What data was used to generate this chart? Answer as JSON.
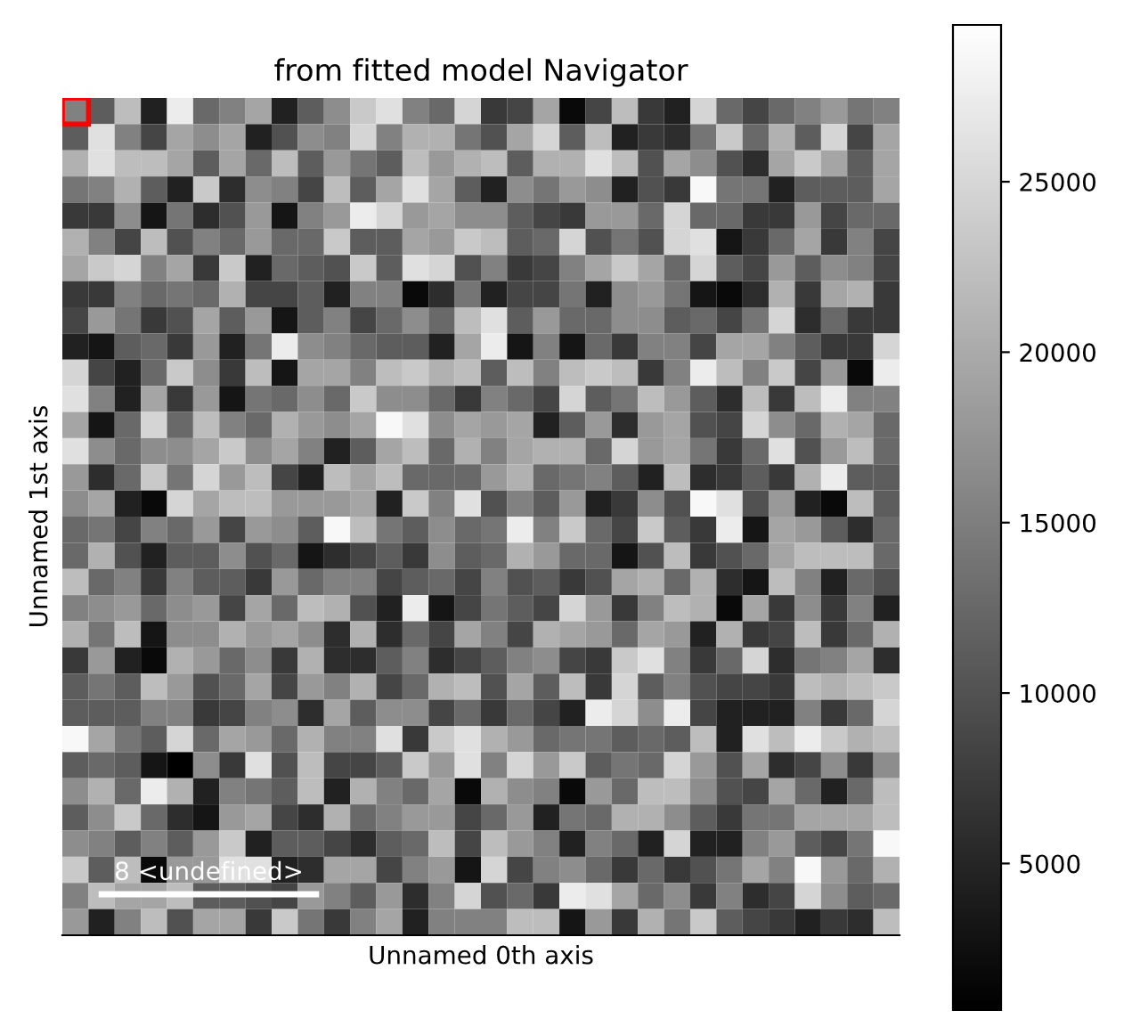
{
  "chart_data": {
    "type": "heatmap",
    "title": "from fitted model Navigator",
    "xlabel": "Unnamed 0th axis",
    "ylabel": "Unnamed 1st axis",
    "annotations": [
      "8 <undefined>"
    ],
    "tick_labels": false,
    "clim": [
      700,
      29600
    ],
    "cticks": [
      5000,
      10000,
      15000,
      20000,
      25000
    ],
    "categories": [
      null,
      null,
      null,
      null,
      null,
      null,
      null,
      null,
      null,
      null,
      null,
      null,
      null,
      null,
      null,
      null,
      null,
      null,
      null,
      null,
      null,
      null,
      null,
      null,
      null,
      null,
      null,
      null,
      null,
      null,
      null,
      null
    ],
    "y_categories": [
      null,
      null,
      null,
      null,
      null,
      null,
      null,
      null,
      null,
      null,
      null,
      null,
      null,
      null,
      null,
      null,
      null,
      null,
      null,
      null,
      null,
      null,
      null,
      null,
      null,
      null,
      null,
      null,
      null,
      null,
      null,
      null
    ],
    "cells": [
      [
        15300,
        11250,
        22050,
        4500,
        27450,
        12600,
        15300,
        19350,
        4500,
        11250,
        16650,
        23400,
        26100,
        15300,
        12600,
        24750,
        7200,
        8550,
        19350,
        1800,
        8550,
        22050,
        7200,
        4500,
        24750,
        12600,
        8550,
        12600,
        15300,
        18000,
        13950,
        15300
      ],
      [
        11250,
        26100,
        15300,
        8550,
        19350,
        16650,
        19350,
        4500,
        9900,
        16650,
        15300,
        24750,
        15300,
        20700,
        20700,
        13950,
        9900,
        19350,
        24750,
        11250,
        22050,
        4500,
        7200,
        5850,
        13950,
        23400,
        12600,
        20700,
        11250,
        24750,
        8550,
        19350
      ],
      [
        20700,
        26100,
        22050,
        22050,
        19350,
        11250,
        19350,
        12600,
        22050,
        11250,
        18000,
        13950,
        11250,
        22050,
        18000,
        20700,
        22050,
        11250,
        20700,
        20700,
        26100,
        22050,
        9900,
        19350,
        16650,
        9900,
        5850,
        19350,
        23400,
        19350,
        11250,
        19350
      ],
      [
        13950,
        15300,
        20700,
        11250,
        4500,
        23400,
        5850,
        16650,
        15300,
        8550,
        22050,
        11250,
        19350,
        26100,
        19350,
        11250,
        4500,
        16650,
        13950,
        18000,
        16650,
        4500,
        9900,
        7200,
        28800,
        13950,
        13950,
        4500,
        11250,
        11250,
        11250,
        19350
      ],
      [
        7200,
        7200,
        16650,
        3150,
        13950,
        5850,
        9900,
        18000,
        3150,
        15300,
        18000,
        27450,
        24750,
        18000,
        19350,
        16650,
        16650,
        11250,
        8550,
        7200,
        18000,
        18000,
        12600,
        24750,
        12600,
        12600,
        7200,
        7200,
        18000,
        8550,
        12600,
        12600
      ],
      [
        20700,
        15300,
        8550,
        22050,
        9900,
        15300,
        12600,
        18000,
        12600,
        12600,
        23400,
        11250,
        11250,
        19350,
        18000,
        23400,
        22050,
        11250,
        12600,
        24750,
        9900,
        13950,
        9900,
        24750,
        26100,
        3150,
        7200,
        12600,
        19350,
        7200,
        15300,
        8550
      ],
      [
        19350,
        23400,
        24750,
        15300,
        19350,
        7200,
        23400,
        4500,
        12600,
        11250,
        9900,
        23400,
        11250,
        26100,
        24750,
        9900,
        15300,
        7200,
        8550,
        15300,
        19350,
        23400,
        19350,
        12600,
        24750,
        11250,
        8550,
        18000,
        11250,
        16650,
        15300,
        8550
      ],
      [
        7200,
        7200,
        15300,
        12600,
        13950,
        12600,
        20700,
        8550,
        8550,
        11250,
        4500,
        15300,
        15300,
        1800,
        5850,
        13950,
        4500,
        8550,
        8550,
        13950,
        4500,
        16650,
        18000,
        13950,
        3150,
        1800,
        5850,
        20700,
        7200,
        19350,
        20700,
        7200
      ],
      [
        8550,
        18000,
        13950,
        7200,
        9900,
        19350,
        11250,
        18000,
        3150,
        11250,
        15300,
        8550,
        12600,
        16650,
        12600,
        22050,
        26100,
        11250,
        18000,
        12600,
        12600,
        16650,
        16650,
        11250,
        12600,
        8550,
        13950,
        24750,
        5850,
        12600,
        7200,
        7200
      ],
      [
        4500,
        3150,
        11250,
        12600,
        7200,
        18000,
        4500,
        13950,
        27450,
        16650,
        15300,
        12600,
        11250,
        11250,
        4500,
        19350,
        27450,
        3150,
        15300,
        3150,
        12600,
        7200,
        15300,
        15300,
        8550,
        19350,
        19350,
        15300,
        11250,
        7200,
        7200,
        24750
      ],
      [
        24750,
        8550,
        4500,
        12600,
        23400,
        16650,
        7200,
        22050,
        3150,
        19350,
        19350,
        15300,
        22050,
        23400,
        20700,
        22050,
        11250,
        22050,
        15300,
        22050,
        23400,
        22050,
        7200,
        15300,
        27450,
        22050,
        15300,
        23400,
        8550,
        18000,
        1800,
        27450
      ],
      [
        26100,
        15300,
        4500,
        19350,
        7200,
        18000,
        3150,
        13950,
        12600,
        16650,
        12600,
        23400,
        16650,
        16650,
        12600,
        7200,
        15300,
        12600,
        8550,
        24750,
        11250,
        13950,
        22050,
        18000,
        11250,
        5850,
        22050,
        7200,
        22050,
        27450,
        15300,
        15300
      ],
      [
        19350,
        3150,
        12600,
        24750,
        12600,
        22050,
        15300,
        12600,
        20700,
        18000,
        16650,
        19350,
        28800,
        26100,
        16650,
        19350,
        18000,
        19350,
        4500,
        11250,
        18000,
        5850,
        18000,
        19350,
        9900,
        8550,
        24750,
        16650,
        12600,
        20700,
        19350,
        12600
      ],
      [
        26100,
        16650,
        12600,
        16650,
        16650,
        19350,
        23400,
        16650,
        19350,
        15300,
        4500,
        11250,
        19350,
        22050,
        12600,
        20700,
        15300,
        19350,
        20700,
        20700,
        12600,
        24750,
        18000,
        19350,
        13950,
        7200,
        12600,
        26100,
        9900,
        18000,
        22050,
        12600
      ],
      [
        18000,
        5850,
        12600,
        23400,
        13950,
        24750,
        18000,
        22050,
        8550,
        4500,
        22050,
        19350,
        22050,
        12600,
        12600,
        12600,
        18000,
        20700,
        12600,
        13950,
        15300,
        11250,
        4500,
        22050,
        5850,
        7200,
        11250,
        7200,
        20700,
        27450,
        11250,
        11250
      ],
      [
        16650,
        19350,
        4500,
        1800,
        24750,
        19350,
        22050,
        22050,
        18000,
        18000,
        18000,
        19350,
        4500,
        23400,
        15300,
        26100,
        9900,
        15300,
        11250,
        18000,
        4500,
        7200,
        16650,
        9900,
        28800,
        26100,
        9900,
        18000,
        4500,
        1800,
        22050,
        11250
      ],
      [
        12600,
        13950,
        8550,
        15300,
        12600,
        18000,
        8550,
        18000,
        16650,
        11250,
        28800,
        22050,
        13950,
        11250,
        16650,
        12600,
        13950,
        27450,
        15300,
        23400,
        12600,
        8550,
        23400,
        11250,
        7200,
        27450,
        3150,
        19350,
        18000,
        11250,
        5850,
        12600
      ],
      [
        12600,
        20700,
        9900,
        4500,
        11250,
        11250,
        16650,
        9900,
        12600,
        3150,
        5850,
        8550,
        11250,
        7200,
        16650,
        11250,
        12600,
        20700,
        18000,
        12600,
        12600,
        3150,
        9900,
        22050,
        7200,
        9900,
        12600,
        19350,
        22050,
        22050,
        22050,
        12600
      ],
      [
        22050,
        12600,
        15300,
        7200,
        15300,
        11250,
        11250,
        7200,
        18000,
        12600,
        15300,
        15300,
        8550,
        11250,
        12600,
        8550,
        15300,
        9900,
        11250,
        7200,
        9900,
        19350,
        20700,
        12600,
        20700,
        5850,
        3150,
        22050,
        15300,
        4500,
        12600,
        9900
      ],
      [
        15300,
        16650,
        18000,
        12600,
        16650,
        18000,
        8550,
        19350,
        12600,
        22050,
        20700,
        9900,
        4500,
        27450,
        3150,
        8550,
        13950,
        11250,
        8550,
        24750,
        18000,
        7200,
        15300,
        22050,
        20700,
        1800,
        19350,
        7200,
        16650,
        7200,
        15300,
        4500
      ],
      [
        20700,
        13950,
        22050,
        3150,
        16650,
        16650,
        20700,
        18000,
        19350,
        16650,
        5850,
        20700,
        5850,
        12600,
        8550,
        19350,
        15300,
        8550,
        20700,
        19350,
        18000,
        12600,
        19350,
        18000,
        4500,
        20700,
        7200,
        8550,
        22050,
        7200,
        12600,
        20700
      ],
      [
        7200,
        18000,
        4500,
        1800,
        20700,
        18000,
        12600,
        16650,
        7200,
        20700,
        5850,
        5850,
        11250,
        15300,
        5850,
        8550,
        11250,
        15300,
        16650,
        8550,
        7200,
        23400,
        26100,
        15300,
        7200,
        12600,
        24750,
        5850,
        13950,
        15300,
        19350,
        5850
      ],
      [
        11250,
        13950,
        11250,
        22050,
        18000,
        9900,
        12600,
        19350,
        8550,
        18000,
        15300,
        20700,
        8550,
        12600,
        20700,
        22050,
        9900,
        19350,
        11250,
        22050,
        7200,
        24750,
        11250,
        15300,
        9900,
        8550,
        8550,
        7200,
        22050,
        20700,
        22050,
        23400
      ],
      [
        11250,
        11250,
        11250,
        15300,
        15300,
        7200,
        8550,
        15300,
        16650,
        5850,
        19350,
        11250,
        16650,
        16650,
        8550,
        12600,
        7200,
        12600,
        8550,
        4500,
        27450,
        24750,
        16650,
        27450,
        8550,
        4500,
        4500,
        4500,
        15300,
        7200,
        12600,
        24750
      ],
      [
        28800,
        19350,
        13950,
        11250,
        24750,
        12600,
        19350,
        18000,
        12600,
        20700,
        15300,
        15300,
        26100,
        7200,
        23400,
        26100,
        20700,
        18000,
        12600,
        13950,
        13950,
        11250,
        12600,
        11250,
        22050,
        4500,
        26100,
        22050,
        27450,
        23400,
        20700,
        22050
      ],
      [
        11250,
        12600,
        11250,
        3150,
        700,
        16650,
        7200,
        26100,
        9900,
        22050,
        8550,
        8550,
        11250,
        23400,
        18000,
        26100,
        15300,
        24750,
        18000,
        23400,
        11250,
        13950,
        12600,
        24750,
        18000,
        9900,
        19350,
        5850,
        8550,
        16650,
        7200,
        16650
      ],
      [
        16650,
        20700,
        12600,
        27450,
        20700,
        4500,
        15300,
        13950,
        11250,
        22050,
        4500,
        20700,
        15300,
        12600,
        19350,
        1800,
        20700,
        16650,
        15300,
        1800,
        18000,
        12600,
        22050,
        22050,
        16650,
        9900,
        8550,
        19350,
        12600,
        4500,
        12600,
        22050
      ],
      [
        11250,
        16650,
        23400,
        12600,
        5850,
        3150,
        18000,
        19350,
        8550,
        5850,
        20700,
        12600,
        15300,
        18000,
        18000,
        8550,
        12600,
        18000,
        4500,
        13950,
        12600,
        20700,
        20700,
        16650,
        11250,
        7200,
        13950,
        13950,
        19350,
        19350,
        19350,
        22050
      ],
      [
        16650,
        15300,
        11250,
        15300,
        11250,
        18000,
        23400,
        4500,
        11250,
        11250,
        8550,
        5850,
        11250,
        12600,
        22050,
        8550,
        22050,
        18000,
        15300,
        4500,
        15300,
        12600,
        4500,
        24750,
        4500,
        4500,
        15300,
        18000,
        11250,
        8550,
        13950,
        28800
      ],
      [
        23400,
        11250,
        22050,
        1800,
        18000,
        18000,
        26100,
        26100,
        4500,
        5850,
        19350,
        19350,
        8550,
        15300,
        18000,
        3150,
        24750,
        8550,
        15300,
        16650,
        12600,
        7200,
        12600,
        7200,
        9900,
        13950,
        19350,
        15300,
        28800,
        18000,
        12600,
        20700
      ],
      [
        15300,
        22050,
        19350,
        19350,
        22050,
        11250,
        11250,
        9900,
        8550,
        18000,
        15300,
        11250,
        18000,
        5850,
        15300,
        24750,
        9900,
        12600,
        7200,
        27450,
        26100,
        19350,
        12600,
        16650,
        7200,
        15300,
        5850,
        8550,
        24750,
        16650,
        11250,
        12600
      ],
      [
        18000,
        4500,
        15300,
        22050,
        9900,
        19350,
        19350,
        7200,
        23400,
        13950,
        7200,
        15300,
        19350,
        4500,
        15300,
        15300,
        15300,
        22050,
        22050,
        3150,
        18000,
        7200,
        20700,
        13950,
        23400,
        11250,
        8550,
        7200,
        4500,
        7200,
        5850,
        22050
      ]
    ]
  }
}
